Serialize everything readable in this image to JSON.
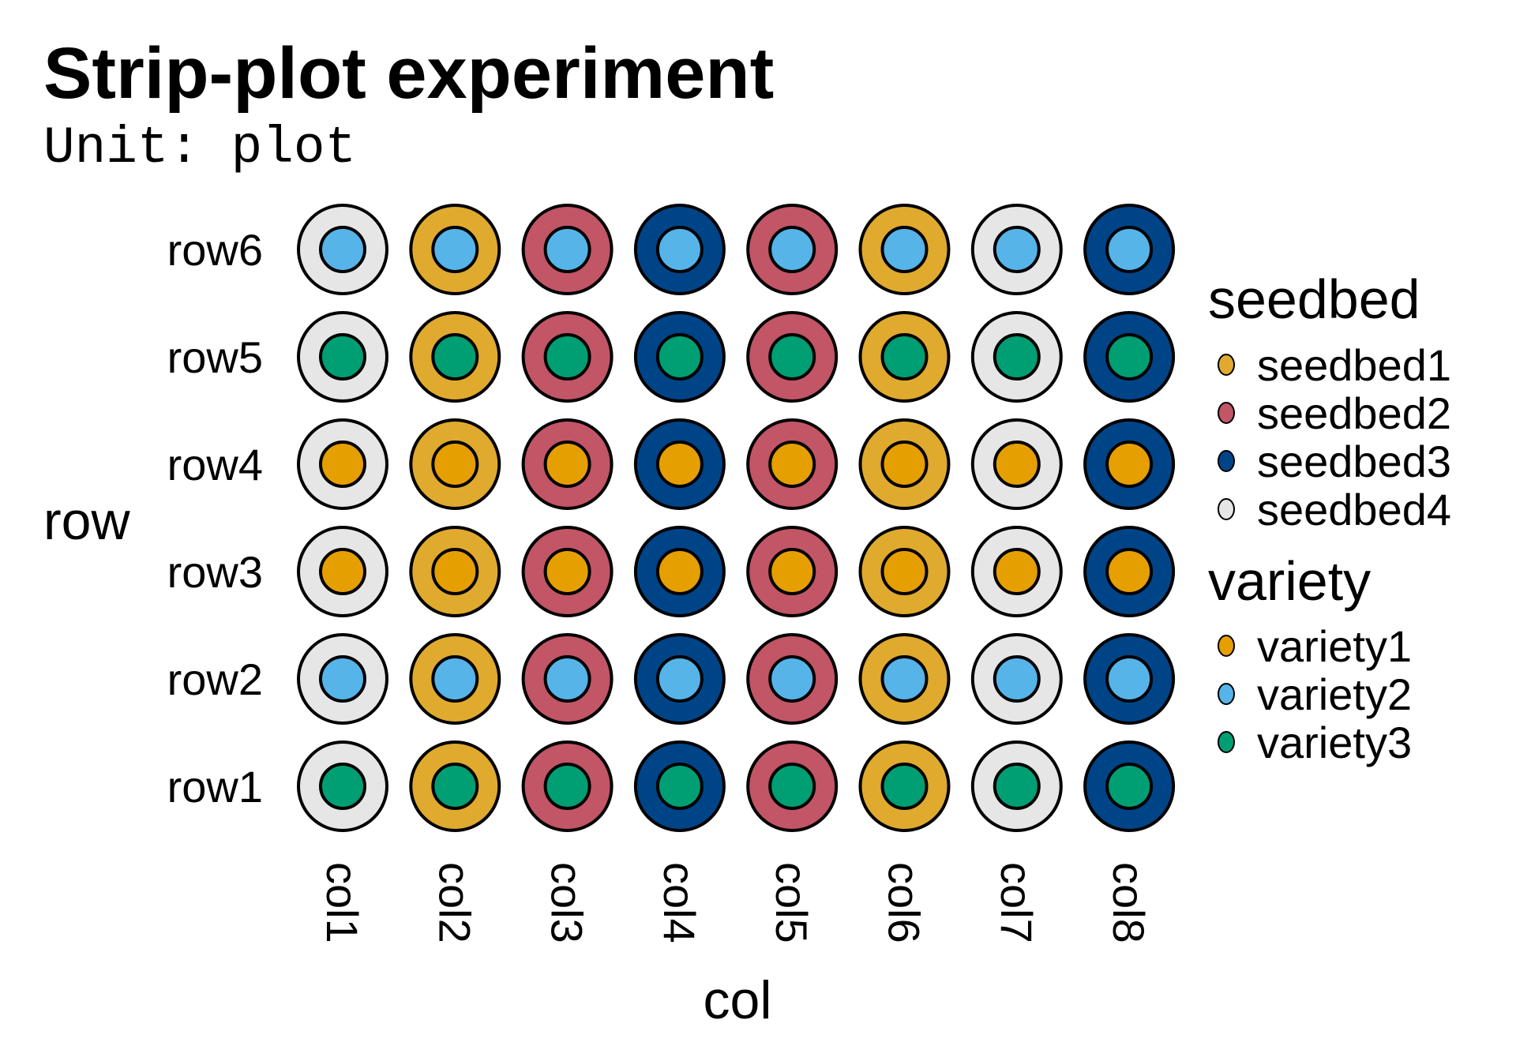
{
  "chart_data": {
    "type": "scatter",
    "title": "Strip-plot experiment",
    "subtitle": "Unit: plot",
    "xlabel": "col",
    "ylabel": "row",
    "x_categories": [
      "col1",
      "col2",
      "col3",
      "col4",
      "col5",
      "col6",
      "col7",
      "col8"
    ],
    "y_categories": [
      "row1",
      "row2",
      "row3",
      "row4",
      "row5",
      "row6"
    ],
    "grid": false,
    "seedbed_by_col": [
      "seedbed4",
      "seedbed1",
      "seedbed2",
      "seedbed3",
      "seedbed2",
      "seedbed1",
      "seedbed4",
      "seedbed3"
    ],
    "variety_by_row": [
      "variety3",
      "variety2",
      "variety1",
      "variety1",
      "variety3",
      "variety2"
    ],
    "legends": [
      {
        "title": "seedbed",
        "placement": "right",
        "entries": [
          {
            "label": "seedbed1",
            "color": "#E0AA2E"
          },
          {
            "label": "seedbed2",
            "color": "#C25566"
          },
          {
            "label": "seedbed3",
            "color": "#004488"
          },
          {
            "label": "seedbed4",
            "color": "#E6E6E6"
          }
        ]
      },
      {
        "title": "variety",
        "placement": "right",
        "entries": [
          {
            "label": "variety1",
            "color": "#E69F00"
          },
          {
            "label": "variety2",
            "color": "#56B4E9"
          },
          {
            "label": "variety3",
            "color": "#009E73"
          }
        ]
      }
    ]
  }
}
